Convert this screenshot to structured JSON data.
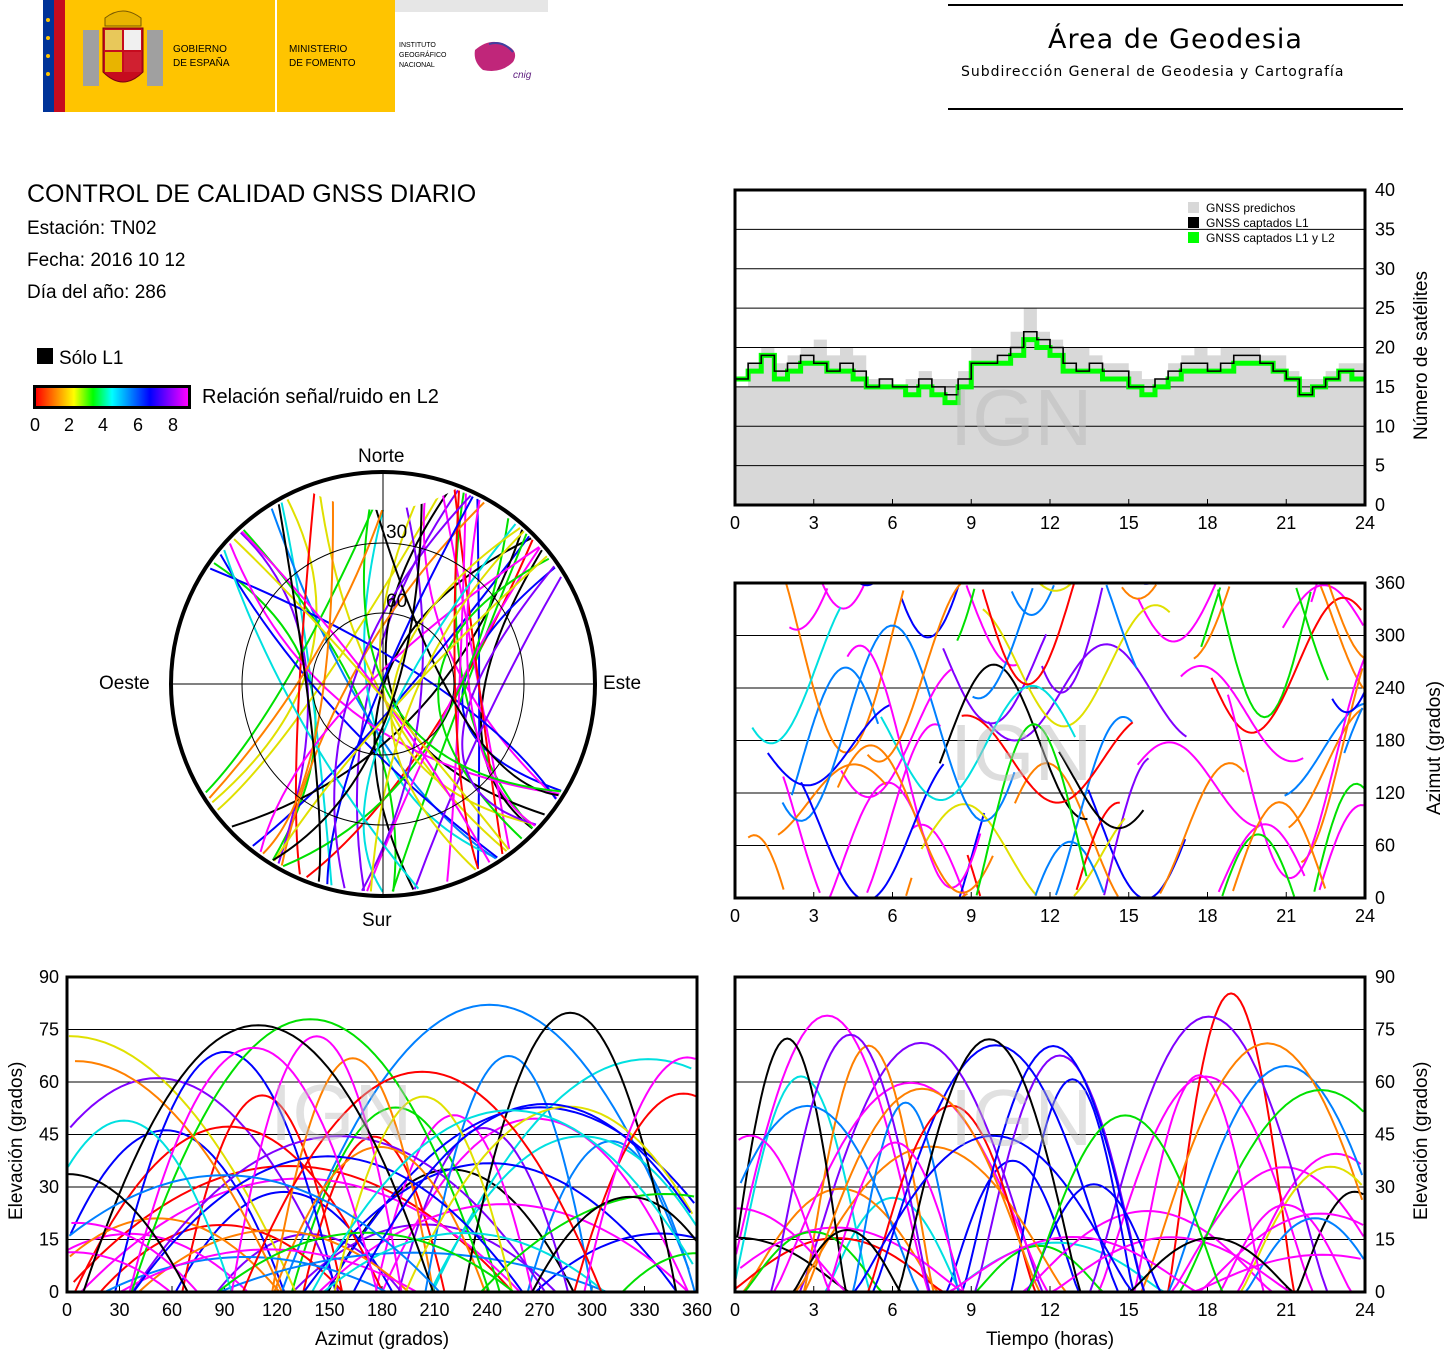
{
  "header": {
    "gov_line1": "GOBIERNO",
    "gov_line2": "DE ESPAÑA",
    "min_line1": "MINISTERIO",
    "min_line2": "DE FOMENTO",
    "ign_line1": "INSTITUTO",
    "ign_line2": "GEOGRÁFICO",
    "ign_line3": "NACIONAL",
    "cnig_text": "cnig",
    "title": "Área de Geodesia",
    "subtitle": "Subdirección General de Geodesia y Cartografía",
    "colors": {
      "flag_red": "#c60b1e",
      "flag_yellow": "#ffc400",
      "eu_blue": "#003399"
    }
  },
  "info": {
    "title": "CONTROL DE CALIDAD GNSS DIARIO",
    "station": "Estación: TN02",
    "date": "Fecha: 2016 10 12",
    "doy": "Día del año: 286",
    "l1_only_label": "Sólo L1",
    "snr_label": "Relación señal/ruido en L2",
    "snr_ticks": [
      "0",
      "2",
      "4",
      "6",
      "8"
    ]
  },
  "watermark": "IGN",
  "chart_data": [
    {
      "type": "polar",
      "id": "skyplot",
      "directions": {
        "north": "Norte",
        "south": "Sur",
        "east": "Este",
        "west": "Oeste"
      },
      "elevation_rings": [
        0,
        30,
        60
      ],
      "ring_labels": [
        "30",
        "60"
      ],
      "description_series": "satellite tracks colored by L2 SNR"
    },
    {
      "type": "area",
      "id": "satellite-count",
      "xlim": [
        0,
        24
      ],
      "ylim": [
        0,
        40
      ],
      "x_ticks": [
        "0",
        "3",
        "6",
        "9",
        "12",
        "15",
        "18",
        "21",
        "24"
      ],
      "y_ticks": [
        "0",
        "5",
        "10",
        "15",
        "20",
        "25",
        "30",
        "35",
        "40"
      ],
      "ylabel": "Número de satélites",
      "legend": [
        "GNSS predichos",
        "GNSS captados L1",
        "GNSS captados L1 y L2"
      ],
      "legend_colors": [
        "#d8d8d8",
        "#000000",
        "#00ff00"
      ],
      "hours": [
        0,
        0.5,
        1,
        1.5,
        2,
        2.5,
        3,
        3.5,
        4,
        4.5,
        5,
        5.5,
        6,
        6.5,
        7,
        7.5,
        8,
        8.5,
        9,
        9.5,
        10,
        10.5,
        11,
        11.5,
        12,
        12.5,
        13,
        13.5,
        14,
        14.5,
        15,
        15.5,
        16,
        16.5,
        17,
        17.5,
        18,
        18.5,
        19,
        19.5,
        20,
        20.5,
        21,
        21.5,
        22,
        22.5,
        23,
        23.5,
        24
      ],
      "predicted": [
        15,
        18,
        20,
        18,
        19,
        20,
        21,
        19,
        20,
        19,
        16,
        16,
        15,
        16,
        17,
        16,
        16,
        17,
        20,
        20,
        20,
        22,
        25,
        22,
        21,
        20,
        20,
        19,
        18,
        18,
        17,
        16,
        16,
        18,
        19,
        20,
        19,
        20,
        20,
        20,
        19,
        19,
        17,
        16,
        16,
        17,
        18,
        18,
        18
      ],
      "l1": [
        16,
        18,
        19,
        17,
        18,
        19,
        18,
        17,
        18,
        17,
        15,
        16,
        15,
        15,
        16,
        15,
        14,
        16,
        18,
        18,
        19,
        20,
        22,
        21,
        20,
        18,
        17,
        18,
        17,
        17,
        15,
        15,
        16,
        17,
        18,
        18,
        17,
        18,
        19,
        19,
        18,
        17,
        16,
        14,
        15,
        16,
        17,
        17,
        17
      ],
      "l1_l2": [
        16,
        17,
        19,
        16,
        17,
        18,
        18,
        17,
        17,
        16,
        15,
        15,
        15,
        14,
        15,
        14,
        13,
        15,
        18,
        18,
        18,
        19,
        21,
        20,
        19,
        17,
        17,
        17,
        16,
        16,
        15,
        14,
        15,
        16,
        17,
        17,
        17,
        17,
        18,
        18,
        18,
        17,
        16,
        14,
        15,
        16,
        17,
        16,
        16
      ]
    },
    {
      "type": "scatter",
      "id": "azimuth-vs-time",
      "xlim": [
        0,
        24
      ],
      "ylim": [
        0,
        360
      ],
      "x_ticks": [
        "0",
        "3",
        "6",
        "9",
        "12",
        "15",
        "18",
        "21",
        "24"
      ],
      "y_ticks": [
        "0",
        "60",
        "120",
        "180",
        "240",
        "300",
        "360"
      ],
      "ylabel": "Azimut (grados)"
    },
    {
      "type": "scatter",
      "id": "elevation-vs-azimuth",
      "xlim": [
        0,
        360
      ],
      "ylim": [
        0,
        90
      ],
      "x_ticks": [
        "0",
        "30",
        "60",
        "90",
        "120",
        "150",
        "180",
        "210",
        "240",
        "270",
        "300",
        "330",
        "360"
      ],
      "y_ticks": [
        "0",
        "15",
        "30",
        "45",
        "60",
        "75",
        "90"
      ],
      "xlabel": "Azimut (grados)",
      "ylabel": "Elevación (grados)"
    },
    {
      "type": "scatter",
      "id": "elevation-vs-time",
      "xlim": [
        0,
        24
      ],
      "ylim": [
        0,
        90
      ],
      "x_ticks": [
        "0",
        "3",
        "6",
        "9",
        "12",
        "15",
        "18",
        "21",
        "24"
      ],
      "y_ticks": [
        "0",
        "15",
        "30",
        "45",
        "60",
        "75",
        "90"
      ],
      "xlabel": "Tiempo (horas)",
      "ylabel": "Elevación (grados)"
    }
  ]
}
